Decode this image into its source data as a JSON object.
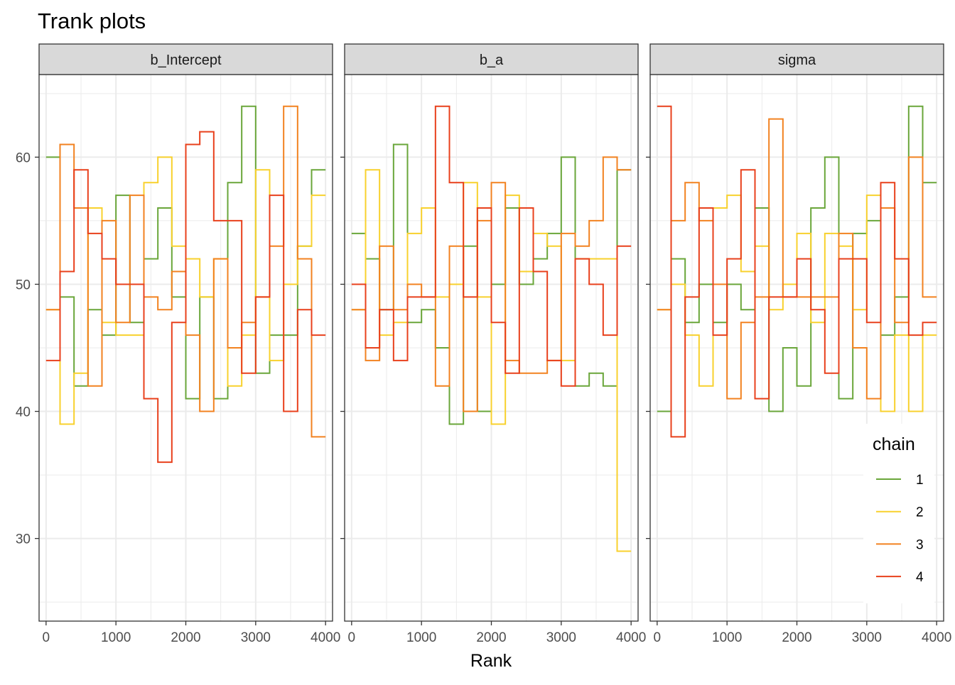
{
  "title": "Trank plots",
  "chart_data": {
    "type": "line",
    "step": true,
    "title": "Trank plots",
    "xlabel": "Rank",
    "ylabel": "",
    "xlim": [
      -100,
      4100
    ],
    "ylim": [
      23.5,
      66.5
    ],
    "x_ticks": [
      0,
      1000,
      2000,
      3000,
      4000
    ],
    "x_tick_labels": [
      "0",
      "1000",
      "2000",
      "3000",
      "4000"
    ],
    "y_ticks": [
      30,
      40,
      50,
      60
    ],
    "y_tick_labels": [
      "30",
      "40",
      "50",
      "60"
    ],
    "bin_edges": [
      0,
      200,
      400,
      600,
      800,
      1000,
      1200,
      1400,
      1600,
      1800,
      2000,
      2200,
      2400,
      2600,
      2800,
      3000,
      3200,
      3400,
      3600,
      3800,
      4000
    ],
    "grid": true,
    "legend": {
      "title": "chain",
      "position": "right-bottom",
      "entries": [
        {
          "label": "1",
          "color": "#6aa63a"
        },
        {
          "label": "2",
          "color": "#f8d12d"
        },
        {
          "label": "3",
          "color": "#f28220"
        },
        {
          "label": "4",
          "color": "#e8401c"
        }
      ]
    },
    "panels": [
      {
        "label": "b_Intercept",
        "series": [
          {
            "name": "1",
            "color": "#6aa63a",
            "values": [
              60,
              49,
              42,
              48,
              46,
              57,
              47,
              52,
              56,
              49,
              41,
              49,
              41,
              58,
              64,
              43,
              46,
              46,
              53,
              59
            ]
          },
          {
            "name": "2",
            "color": "#f8d12d",
            "values": [
              48,
              39,
              43,
              56,
              47,
              46,
              46,
              58,
              60,
              53,
              52,
              49,
              52,
              42,
              46,
              59,
              44,
              50,
              53,
              57
            ]
          },
          {
            "name": "3",
            "color": "#f28220",
            "values": [
              48,
              61,
              56,
              42,
              55,
              47,
              57,
              49,
              48,
              51,
              46,
              40,
              52,
              45,
              47,
              49,
              53,
              64,
              52,
              38
            ]
          },
          {
            "name": "4",
            "color": "#e8401c",
            "values": [
              44,
              51,
              59,
              54,
              52,
              50,
              50,
              41,
              36,
              47,
              61,
              62,
              55,
              55,
              43,
              49,
              57,
              40,
              48,
              46
            ]
          }
        ]
      },
      {
        "label": "b_a",
        "series": [
          {
            "name": "1",
            "color": "#6aa63a",
            "values": [
              54,
              52,
              48,
              61,
              47,
              48,
              45,
              39,
              53,
              40,
              50,
              56,
              50,
              52,
              54,
              60,
              42,
              43,
              42,
              59
            ]
          },
          {
            "name": "2",
            "color": "#f8d12d",
            "values": [
              48,
              59,
              46,
              47,
              54,
              56,
              49,
              50,
              58,
              49,
              39,
              57,
              51,
              54,
              53,
              44,
              52,
              52,
              52,
              29
            ]
          },
          {
            "name": "3",
            "color": "#f28220",
            "values": [
              48,
              44,
              53,
              48,
              50,
              49,
              42,
              53,
              40,
              55,
              58,
              44,
              43,
              43,
              44,
              54,
              53,
              55,
              60,
              59
            ]
          },
          {
            "name": "4",
            "color": "#e8401c",
            "values": [
              50,
              45,
              48,
              44,
              49,
              49,
              64,
              58,
              49,
              56,
              47,
              43,
              56,
              51,
              44,
              42,
              52,
              50,
              46,
              53
            ]
          }
        ]
      },
      {
        "label": "sigma",
        "series": [
          {
            "name": "1",
            "color": "#6aa63a",
            "values": [
              40,
              52,
              47,
              50,
              47,
              50,
              48,
              56,
              40,
              45,
              42,
              56,
              60,
              41,
              54,
              55,
              46,
              49,
              64,
              58
            ]
          },
          {
            "name": "2",
            "color": "#f8d12d",
            "values": [
              48,
              50,
              46,
              42,
              56,
              57,
              51,
              53,
              48,
              50,
              54,
              47,
              54,
              53,
              48,
              57,
              40,
              46,
              40,
              46
            ]
          },
          {
            "name": "3",
            "color": "#f28220",
            "values": [
              48,
              55,
              58,
              55,
              50,
              41,
              47,
              49,
              63,
              49,
              49,
              49,
              49,
              54,
              45,
              41,
              56,
              47,
              60,
              49
            ]
          },
          {
            "name": "4",
            "color": "#e8401c",
            "values": [
              64,
              38,
              49,
              56,
              46,
              52,
              59,
              41,
              49,
              49,
              52,
              48,
              43,
              52,
              52,
              47,
              58,
              52,
              46,
              47
            ]
          }
        ]
      }
    ]
  }
}
